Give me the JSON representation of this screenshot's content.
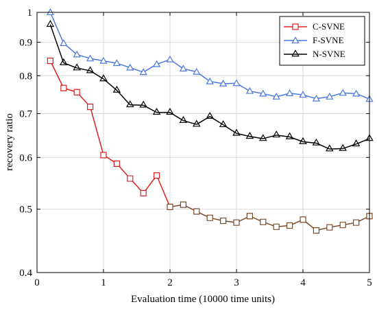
{
  "chart_data": {
    "type": "line",
    "title": "",
    "xlabel": "Evaluation time (10000 time units)",
    "ylabel": "recovery ratio",
    "xlim": [
      0,
      5
    ],
    "ylim": [
      0.4,
      1
    ],
    "y_scale": "log",
    "grid": true,
    "legend_position": "top-right",
    "x_ticks": [
      "0",
      "1",
      "2",
      "3",
      "4",
      "5"
    ],
    "y_ticks": [
      "0.4",
      "0.5",
      "0.6",
      "0.7",
      "0.8",
      "0.9",
      "1"
    ],
    "x": [
      0.2,
      0.4,
      0.6,
      0.8,
      1.0,
      1.2,
      1.4,
      1.6,
      1.8,
      2.0,
      2.2,
      2.4,
      2.6,
      2.8,
      3.0,
      3.2,
      3.4,
      3.6,
      3.8,
      4.0,
      4.2,
      4.4,
      4.6,
      4.8,
      5.0
    ],
    "series": [
      {
        "name": "C-SVNE",
        "color": "#e02020",
        "tail_color": "#7a4a2a",
        "marker": "square",
        "values": [
          0.843,
          0.766,
          0.755,
          0.717,
          0.605,
          0.587,
          0.557,
          0.529,
          0.563,
          0.504,
          0.508,
          0.496,
          0.485,
          0.48,
          0.477,
          0.488,
          0.478,
          0.47,
          0.472,
          0.482,
          0.464,
          0.469,
          0.473,
          0.477,
          0.488
        ]
      },
      {
        "name": "F-SVNE",
        "color": "#4a78e0",
        "marker": "triangle",
        "values": [
          1.0,
          0.897,
          0.862,
          0.85,
          0.843,
          0.836,
          0.823,
          0.81,
          0.833,
          0.847,
          0.82,
          0.811,
          0.784,
          0.778,
          0.779,
          0.758,
          0.751,
          0.743,
          0.752,
          0.748,
          0.738,
          0.743,
          0.753,
          0.751,
          0.737
        ]
      },
      {
        "name": "N-SVNE",
        "color": "#000000",
        "marker": "hexagram",
        "values": [
          0.958,
          0.837,
          0.822,
          0.814,
          0.791,
          0.76,
          0.722,
          0.721,
          0.703,
          0.703,
          0.683,
          0.674,
          0.693,
          0.673,
          0.653,
          0.646,
          0.641,
          0.649,
          0.645,
          0.634,
          0.631,
          0.618,
          0.619,
          0.629,
          0.641
        ]
      }
    ]
  }
}
